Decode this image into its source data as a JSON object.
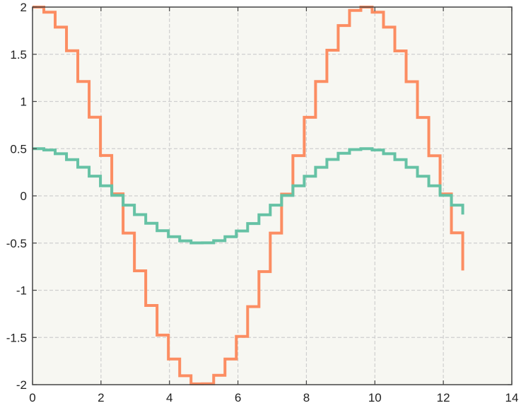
{
  "chart_data": {
    "type": "line",
    "step": "post",
    "title": "",
    "xlabel": "",
    "ylabel": "",
    "xlim": [
      0,
      14
    ],
    "ylim": [
      -2,
      2
    ],
    "xticks": [
      0,
      2,
      4,
      6,
      8,
      10,
      12,
      14
    ],
    "yticks": [
      -2,
      -1.5,
      -1,
      -0.5,
      0,
      0.5,
      1,
      1.5,
      2
    ],
    "xtick_labels": [
      "0",
      "2",
      "4",
      "6",
      "8",
      "10",
      "12",
      "14"
    ],
    "ytick_labels": [
      "-2",
      "-1.5",
      "-1",
      "-0.5",
      "0",
      "0.5",
      "1",
      "1.5",
      "2"
    ],
    "grid": true,
    "legend": "none",
    "colors": {
      "plot_background": "#f7f7f2",
      "grid": "#cfcfcf",
      "axes": "#444444"
    },
    "x": [
      0,
      0.3307,
      0.6614,
      0.9921,
      1.3228,
      1.6535,
      1.9842,
      2.3149,
      2.6456,
      2.9763,
      3.307,
      3.6377,
      3.9684,
      4.2991,
      4.6298,
      4.9605,
      5.2912,
      5.6219,
      5.9526,
      6.2833,
      6.614,
      6.9447,
      7.2754,
      7.6061,
      7.9368,
      8.2675,
      8.5982,
      8.9289,
      9.2596,
      9.5903,
      9.921,
      10.2517,
      10.5824,
      10.9131,
      11.2438,
      11.5745,
      11.9052,
      12.2359,
      12.5666
    ],
    "series": [
      {
        "color": "#fc8d62",
        "values": [
          2,
          1.9458,
          1.7876,
          1.5372,
          1.2118,
          0.8336,
          0.4278,
          0.0218,
          -0.3942,
          -0.7944,
          -1.1612,
          -1.4748,
          -1.7286,
          -1.9054,
          -1.9912,
          -1.9902,
          -1.9006,
          -1.7284,
          -1.4886,
          -1.1728,
          -0.8022,
          -0.3938,
          0.0186,
          0.4258,
          0.8326,
          1.2114,
          1.5432,
          1.8042,
          1.9644,
          1.9998,
          1.9456,
          1.7872,
          1.5356,
          1.2094,
          0.8306,
          0.4252,
          0.0208,
          -0.3918,
          -0.7898
        ]
      },
      {
        "color": "#66c2a5",
        "values": [
          0.5,
          0.4864,
          0.4469,
          0.3843,
          0.303,
          0.2084,
          0.107,
          0.0054,
          -0.0986,
          -0.1986,
          -0.2903,
          -0.3687,
          -0.4321,
          -0.4763,
          -0.4978,
          -0.4976,
          -0.4751,
          -0.4321,
          -0.3721,
          -0.2932,
          -0.2005,
          -0.0985,
          0.0046,
          0.1064,
          0.2081,
          0.3028,
          0.3858,
          0.451,
          0.4911,
          0.5,
          0.4864,
          0.4468,
          0.3839,
          0.3023,
          0.2076,
          0.1063,
          0.0052,
          -0.0979,
          -0.1974
        ]
      }
    ]
  }
}
